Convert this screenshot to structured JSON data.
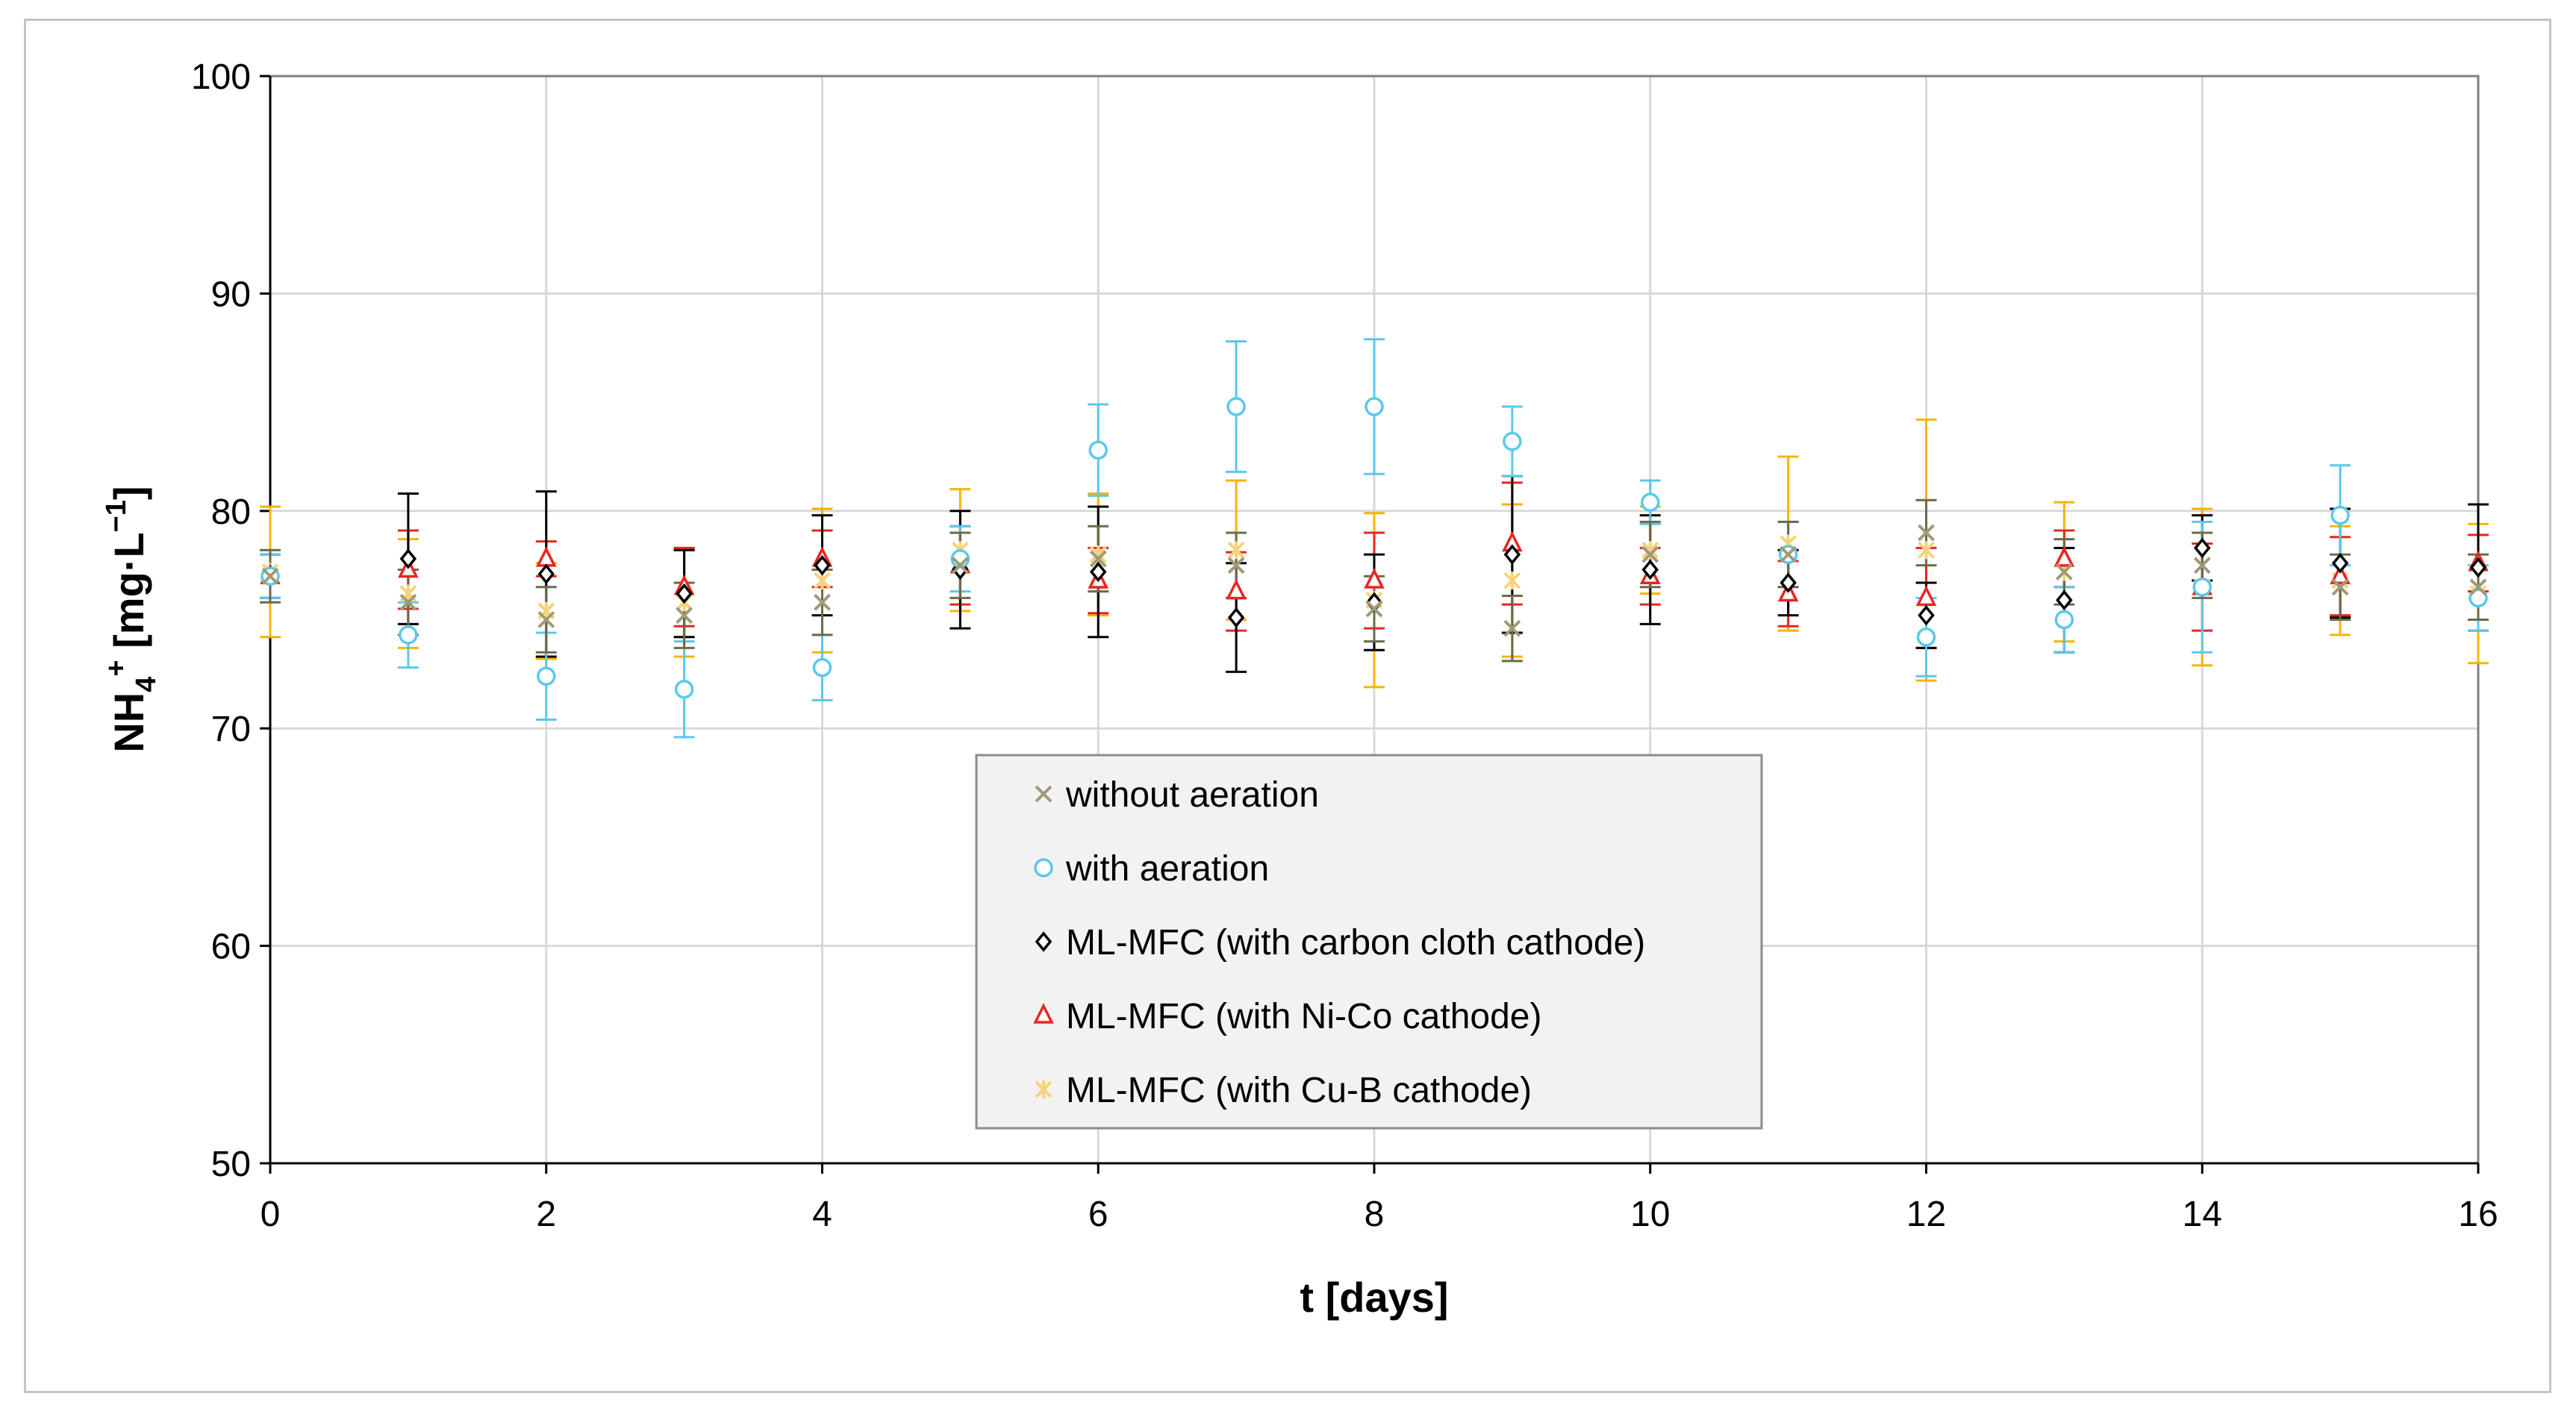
{
  "chart_data": {
    "type": "scatter",
    "title": "",
    "xlabel": "t [days]",
    "ylabel": "NH4+ [mg·L−1]",
    "ylabel_parts": {
      "base": "NH",
      "sub": "4",
      "sup": "+",
      "unit": " [mg·L",
      "unit_sup": "−1",
      "close": "]"
    },
    "xlim": [
      0,
      16
    ],
    "ylim": [
      50,
      100
    ],
    "xticks": [
      "0",
      "2",
      "4",
      "6",
      "8",
      "10",
      "12",
      "14",
      "16"
    ],
    "yticks": [
      "50",
      "60",
      "70",
      "80",
      "90",
      "100"
    ],
    "xtick_values": [
      0,
      2,
      4,
      6,
      8,
      10,
      12,
      14,
      16
    ],
    "ytick_values": [
      50,
      60,
      70,
      80,
      90,
      100
    ],
    "grid": true,
    "legend_position": "center-bottom",
    "x": [
      0,
      1,
      2,
      3,
      4,
      5,
      6,
      7,
      8,
      9,
      10,
      11,
      12,
      13,
      14,
      15,
      16
    ],
    "series": [
      {
        "name": "without aeration",
        "marker": "x",
        "color": "#a09a78",
        "errorbar_color": "#6b6b4a",
        "values": [
          77.0,
          75.8,
          75.0,
          75.2,
          75.8,
          77.5,
          77.8,
          77.5,
          75.5,
          74.6,
          78.0,
          78.0,
          79.0,
          77.2,
          77.5,
          76.5,
          76.5
        ],
        "errors": [
          1.2,
          1.5,
          1.5,
          1.5,
          1.5,
          1.5,
          1.5,
          1.5,
          1.5,
          1.5,
          1.5,
          1.5,
          1.5,
          1.5,
          1.5,
          1.5,
          1.5
        ]
      },
      {
        "name": "with aeration",
        "marker": "circle",
        "color": "#5bc8ec",
        "errorbar_color": "#5bc8ec",
        "values": [
          77.0,
          74.3,
          72.4,
          71.8,
          72.8,
          77.8,
          82.8,
          84.8,
          84.8,
          83.2,
          80.4,
          78.0,
          74.2,
          75.0,
          76.5,
          79.8,
          76.0
        ],
        "errors": [
          1.0,
          1.5,
          2.0,
          2.2,
          1.5,
          1.5,
          2.1,
          3.0,
          3.1,
          1.6,
          1.0,
          1.5,
          1.8,
          1.5,
          3.0,
          2.3,
          1.5
        ]
      },
      {
        "name": "ML-MFC (with carbon cloth cathode)",
        "marker": "diamond",
        "color": "#000000",
        "errorbar_color": "#000000",
        "values": [
          77.0,
          77.8,
          77.1,
          76.2,
          77.5,
          77.3,
          77.2,
          75.1,
          75.8,
          78.0,
          77.3,
          76.7,
          75.2,
          75.9,
          78.3,
          77.6,
          77.4
        ],
        "errors": [
          1.0,
          3.0,
          3.8,
          2.0,
          2.3,
          2.7,
          3.0,
          2.5,
          2.2,
          3.6,
          2.5,
          1.5,
          1.5,
          2.4,
          1.5,
          2.5,
          2.9
        ]
      },
      {
        "name": "ML-MFC (with Ni-Co cathode)",
        "marker": "triangle",
        "color": "#e8261f",
        "errorbar_color": "#e8261f",
        "values": [
          77.0,
          77.3,
          77.8,
          76.5,
          77.8,
          77.5,
          76.8,
          76.3,
          76.8,
          78.5,
          77.0,
          76.2,
          76.0,
          77.8,
          76.5,
          77.0,
          77.6
        ],
        "errors": [
          1.0,
          1.8,
          0.8,
          1.8,
          1.3,
          1.8,
          1.5,
          1.8,
          2.2,
          2.8,
          1.3,
          1.5,
          2.3,
          1.3,
          2.0,
          1.8,
          1.3
        ]
      },
      {
        "name": "ML-MFC (with Cu-B cathode)",
        "marker": "asterisk",
        "color": "#f7d27a",
        "errorbar_color": "#f5b400",
        "values": [
          77.2,
          76.2,
          75.4,
          75.8,
          76.8,
          78.2,
          78.0,
          78.2,
          75.9,
          76.8,
          78.2,
          78.5,
          78.2,
          77.2,
          76.5,
          76.8,
          76.2
        ],
        "errors": [
          3.0,
          2.5,
          2.2,
          2.5,
          3.3,
          2.8,
          2.8,
          3.2,
          4.0,
          3.5,
          2.0,
          4.0,
          6.0,
          3.2,
          3.6,
          2.5,
          3.2
        ]
      }
    ]
  }
}
